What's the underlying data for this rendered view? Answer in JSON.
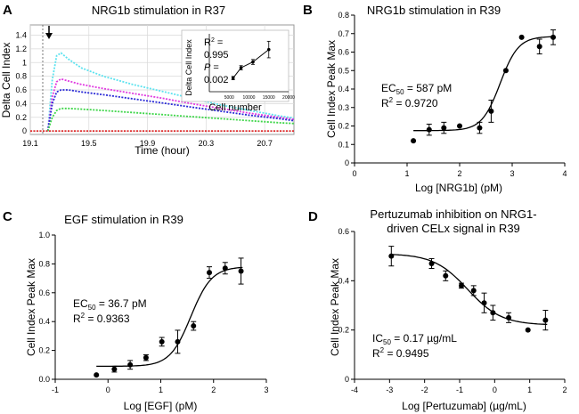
{
  "chart_data": [
    {
      "panel": "A",
      "type": "line",
      "title": "NRG1b stimulation in R37",
      "xlabel": "Time (hour)",
      "ylabel": "Delta Cell Index",
      "xlim": [
        19.1,
        20.9
      ],
      "ylim": [
        -0.05,
        1.55
      ],
      "xticks": [
        19.1,
        19.5,
        19.9,
        20.3,
        20.7
      ],
      "yticks": [
        0,
        0.2,
        0.4,
        0.6,
        0.8,
        1.0,
        1.2,
        1.4
      ],
      "xtick_labels": [
        "19.1",
        "19.5",
        "19.9",
        "20.3",
        "20.7"
      ],
      "ytick_labels": [
        "0",
        "0.2",
        "0.4",
        "0.6",
        "0.8",
        "1",
        "1.2",
        "1.4"
      ],
      "series": [
        {
          "name": "cyan",
          "color": "#5ee3ef",
          "points": [
            [
              19.22,
              0
            ],
            [
              19.25,
              0.75
            ],
            [
              19.28,
              1.1
            ],
            [
              19.31,
              1.14
            ],
            [
              19.36,
              1.05
            ],
            [
              19.45,
              0.92
            ],
            [
              19.6,
              0.8
            ],
            [
              19.8,
              0.68
            ],
            [
              20.0,
              0.58
            ],
            [
              20.2,
              0.48
            ],
            [
              20.4,
              0.38
            ],
            [
              20.6,
              0.3
            ],
            [
              20.8,
              0.22
            ],
            [
              20.9,
              0.19
            ]
          ]
        },
        {
          "name": "magenta",
          "color": "#e03ae0",
          "points": [
            [
              19.22,
              0
            ],
            [
              19.25,
              0.5
            ],
            [
              19.28,
              0.72
            ],
            [
              19.31,
              0.76
            ],
            [
              19.36,
              0.73
            ],
            [
              19.45,
              0.68
            ],
            [
              19.6,
              0.62
            ],
            [
              19.8,
              0.55
            ],
            [
              20.0,
              0.48
            ],
            [
              20.2,
              0.4
            ],
            [
              20.4,
              0.33
            ],
            [
              20.6,
              0.26
            ],
            [
              20.8,
              0.2
            ],
            [
              20.9,
              0.17
            ]
          ]
        },
        {
          "name": "blue",
          "color": "#2a2ad6",
          "points": [
            [
              19.22,
              0
            ],
            [
              19.25,
              0.4
            ],
            [
              19.28,
              0.57
            ],
            [
              19.31,
              0.6
            ],
            [
              19.36,
              0.6
            ],
            [
              19.45,
              0.57
            ],
            [
              19.6,
              0.53
            ],
            [
              19.8,
              0.47
            ],
            [
              20.0,
              0.41
            ],
            [
              20.2,
              0.35
            ],
            [
              20.4,
              0.29
            ],
            [
              20.6,
              0.23
            ],
            [
              20.8,
              0.18
            ],
            [
              20.9,
              0.15
            ]
          ]
        },
        {
          "name": "green",
          "color": "#3fd64a",
          "points": [
            [
              19.22,
              0
            ],
            [
              19.25,
              0.2
            ],
            [
              19.28,
              0.3
            ],
            [
              19.31,
              0.33
            ],
            [
              19.36,
              0.33
            ],
            [
              19.45,
              0.32
            ],
            [
              19.6,
              0.3
            ],
            [
              19.8,
              0.27
            ],
            [
              20.0,
              0.24
            ],
            [
              20.2,
              0.21
            ],
            [
              20.4,
              0.18
            ],
            [
              20.6,
              0.15
            ],
            [
              20.8,
              0.12
            ],
            [
              20.9,
              0.11
            ]
          ]
        },
        {
          "name": "red-baseline",
          "color": "#e03030",
          "points": [
            [
              19.1,
              0
            ],
            [
              20.9,
              0
            ]
          ]
        }
      ],
      "inset": {
        "xlabel": "Cell number",
        "ylabel": "Delta Cell Index",
        "xlim": [
          0,
          20000
        ],
        "ylim": [
          0,
          1.4
        ],
        "xticks": [
          5000,
          10000,
          15000,
          20000
        ],
        "xtick_labels": [
          "5000",
          "10000",
          "15000",
          "20000"
        ],
        "x": [
          6000,
          8000,
          11000,
          15000
        ],
        "y": [
          0.33,
          0.58,
          0.72,
          1.02
        ],
        "err": [
          0.04,
          0.05,
          0.06,
          0.2
        ],
        "r2_label": "R",
        "r2_exp": "2",
        "r2_eq": " =",
        "r2_value": "0.995",
        "p_label": "P",
        "p_eq": " =",
        "p_value": "0.002"
      }
    },
    {
      "panel": "B",
      "type": "scatter",
      "title": "NRG1b stimulation in R39",
      "xlabel": "Log [NRG1b] (pM)",
      "ylabel": "Cell Index Peak Max",
      "xlim": [
        0,
        4
      ],
      "ylim": [
        0,
        0.8
      ],
      "xticks": [
        0,
        1,
        2,
        3,
        4
      ],
      "yticks": [
        0,
        0.1,
        0.2,
        0.3,
        0.4,
        0.5,
        0.6,
        0.7,
        0.8
      ],
      "xtick_labels": [
        "0",
        "1",
        "2",
        "3",
        "4"
      ],
      "ytick_labels": [
        "0",
        "0.1",
        "0.2",
        "0.3",
        "0.4",
        "0.5",
        "0.6",
        "0.7",
        "0.8"
      ],
      "x": [
        1.12,
        1.42,
        1.7,
        2.0,
        2.38,
        2.6,
        2.88,
        3.18,
        3.52,
        3.78
      ],
      "y": [
        0.12,
        0.18,
        0.19,
        0.2,
        0.19,
        0.28,
        0.5,
        0.68,
        0.63,
        0.68
      ],
      "err": [
        0,
        0.03,
        0.03,
        0,
        0.03,
        0.06,
        0,
        0,
        0.04,
        0.04
      ],
      "curve": {
        "bottom": 0.175,
        "top": 0.685,
        "logmid": 2.77,
        "hill": 2.5,
        "x_from": 1.12,
        "x_to": 3.8
      },
      "stat_label": "EC",
      "stat_sub": "50",
      "stat_value": " = 587 pM",
      "r2_label": "R",
      "r2_exp": "2",
      "r2_value": " = 0.9720"
    },
    {
      "panel": "C",
      "type": "scatter",
      "title": "EGF stimulation in R39",
      "xlabel": "Log [EGF] (pM)",
      "ylabel": "Cell Index Peak Max",
      "xlim": [
        -1,
        3
      ],
      "ylim": [
        0,
        1.0
      ],
      "xticks": [
        -1,
        0,
        1,
        2,
        3
      ],
      "yticks": [
        0,
        0.2,
        0.4,
        0.6,
        0.8,
        1.0
      ],
      "xtick_labels": [
        "-1",
        "0",
        "1",
        "2",
        "3"
      ],
      "ytick_labels": [
        "0.0",
        "0.2",
        "0.4",
        "0.6",
        "0.8",
        "1.0"
      ],
      "x": [
        -0.22,
        0.12,
        0.42,
        0.72,
        1.02,
        1.32,
        1.62,
        1.92,
        2.22,
        2.52
      ],
      "y": [
        0.03,
        0.07,
        0.1,
        0.15,
        0.26,
        0.26,
        0.37,
        0.74,
        0.77,
        0.75
      ],
      "err": [
        0,
        0.02,
        0.03,
        0.02,
        0.03,
        0.08,
        0.03,
        0.04,
        0.04,
        0.09
      ],
      "curve": {
        "bottom": 0.09,
        "top": 0.78,
        "logmid": 1.57,
        "hill": 2.2,
        "x_from": -0.22,
        "x_to": 2.55
      },
      "stat_label": "EC",
      "stat_sub": "50",
      "stat_value": " = 36.7 pM",
      "r2_label": "R",
      "r2_exp": "2",
      "r2_value": " = 0.9363"
    },
    {
      "panel": "D",
      "type": "scatter",
      "title": "Pertuzumab inhibition on NRG1-",
      "title_line2": "driven  CELx signal in R39",
      "xlabel": "Log [Pertuzumab] (µg/mL)",
      "ylabel": "Cell Index Peak Max",
      "xlim": [
        -4,
        2
      ],
      "ylim": [
        0,
        0.6
      ],
      "xticks": [
        -4,
        -3,
        -2,
        -1,
        0,
        1,
        2
      ],
      "yticks": [
        0,
        0.2,
        0.4,
        0.6
      ],
      "xtick_labels": [
        "-4",
        "-3",
        "-2",
        "-1",
        "0",
        "1",
        "2"
      ],
      "ytick_labels": [
        "0",
        "0.2",
        "0.4",
        "0.6"
      ],
      "x": [
        -2.95,
        -1.8,
        -1.4,
        -0.95,
        -0.6,
        -0.3,
        -0.05,
        0.4,
        0.95,
        1.45
      ],
      "y": [
        0.5,
        0.47,
        0.42,
        0.38,
        0.36,
        0.31,
        0.27,
        0.25,
        0.2,
        0.24
      ],
      "err": [
        0.04,
        0.02,
        0.02,
        0.01,
        0.02,
        0.04,
        0.03,
        0.02,
        0,
        0.04
      ],
      "curve": {
        "bottom": 0.22,
        "top": 0.51,
        "logmid": -0.77,
        "hill": -0.9,
        "x_from": -2.95,
        "x_to": 1.5
      },
      "stat_label": "IC",
      "stat_sub": "50",
      "stat_value": " = 0.17 µg/mL",
      "r2_label": "R",
      "r2_exp": "2",
      "r2_value": " = 0.9495"
    }
  ]
}
